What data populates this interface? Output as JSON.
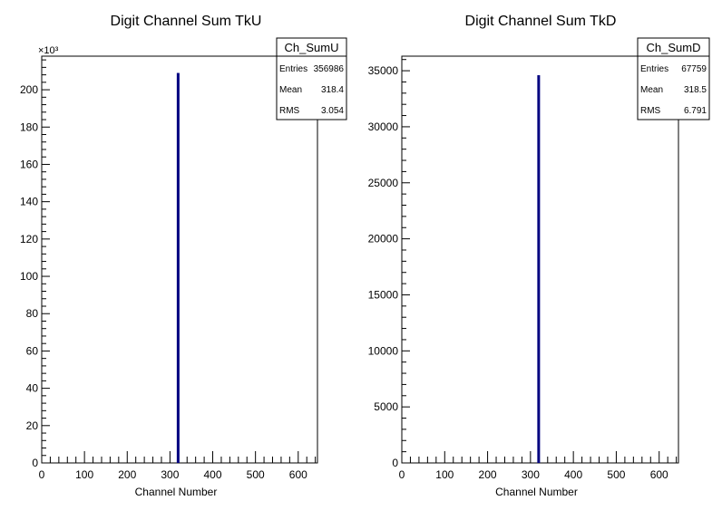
{
  "chart_data": [
    {
      "type": "bar",
      "title": "Digit Channel Sum TkU",
      "xlabel": "Channel Number",
      "ylabel": "",
      "xlim": [
        0,
        645
      ],
      "ylim": [
        0,
        218
      ],
      "y_multiplier": "×10³",
      "xticks": [
        0,
        100,
        200,
        300,
        400,
        500,
        600
      ],
      "yticks": [
        0,
        20,
        40,
        60,
        80,
        100,
        120,
        140,
        160,
        180,
        200
      ],
      "bars": [
        {
          "x": 318,
          "value": 209
        }
      ],
      "series": [
        {
          "name": "Ch_SumU",
          "values": [
            209
          ]
        }
      ],
      "stats": {
        "name": "Ch_SumU",
        "rows": [
          {
            "label": "Entries",
            "value": "356986"
          },
          {
            "label": "Mean",
            "value": "318.4"
          },
          {
            "label": "RMS",
            "value": "3.054"
          }
        ]
      }
    },
    {
      "type": "bar",
      "title": "Digit Channel Sum TkD",
      "xlabel": "Channel Number",
      "ylabel": "",
      "xlim": [
        0,
        645
      ],
      "ylim": [
        0,
        36300
      ],
      "y_multiplier": "",
      "xticks": [
        0,
        100,
        200,
        300,
        400,
        500,
        600
      ],
      "yticks": [
        0,
        5000,
        10000,
        15000,
        20000,
        25000,
        30000,
        35000
      ],
      "bars": [
        {
          "x": 318,
          "value": 34600
        }
      ],
      "series": [
        {
          "name": "Ch_SumD",
          "values": [
            34600
          ]
        }
      ],
      "stats": {
        "name": "Ch_SumD",
        "rows": [
          {
            "label": "Entries",
            "value": "67759"
          },
          {
            "label": "Mean",
            "value": "318.5"
          },
          {
            "label": "RMS",
            "value": "6.791"
          }
        ]
      }
    }
  ],
  "colors": {
    "histogram_line": "#000080",
    "axis": "#000000",
    "background": "#ffffff"
  }
}
